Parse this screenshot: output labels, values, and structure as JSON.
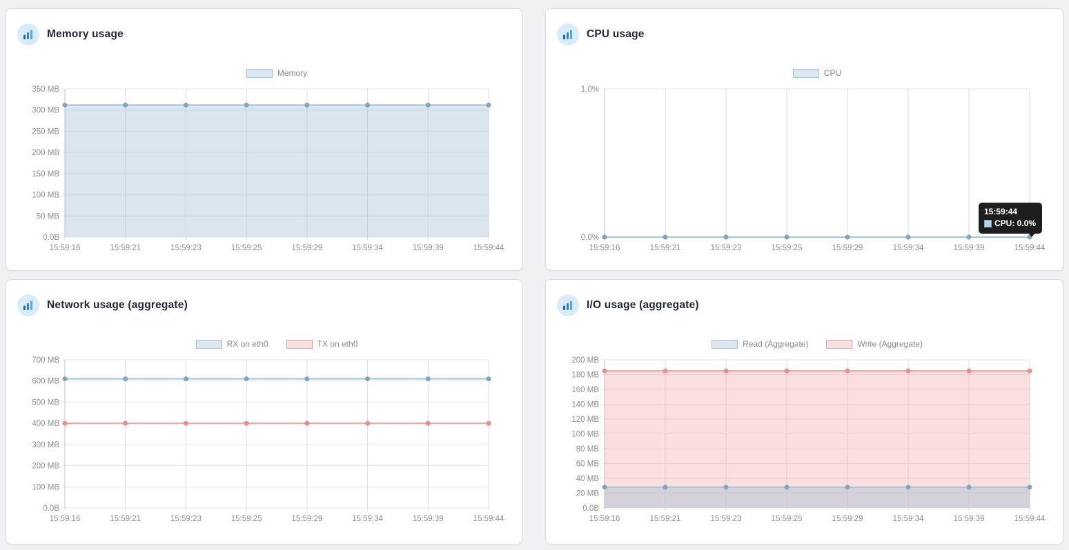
{
  "page": {
    "background": "#f0f1f3",
    "card_border": "#d8dbe2",
    "icon_circle_bg": "#d9ecfc",
    "icon_bar_colors": [
      "#1c66a8",
      "#2e84c8",
      "#5aa5dd"
    ]
  },
  "cards": [
    {
      "title": "Memory usage"
    },
    {
      "title": "CPU usage"
    },
    {
      "title": "Network usage (aggregate)"
    },
    {
      "title": "I/O usage (aggregate)"
    }
  ],
  "chart_data": [
    {
      "type": "area",
      "title": "Memory usage",
      "legend_position": "top",
      "grid": true,
      "categories": [
        "15:59:16",
        "15:59:21",
        "15:59:23",
        "15:59:25",
        "15:59:29",
        "15:59:34",
        "15:59:39",
        "15:59:44"
      ],
      "ylim": [
        0,
        350
      ],
      "yticks": {
        "values": [
          0,
          50,
          100,
          150,
          200,
          250,
          300,
          350
        ],
        "labels": [
          "0.0B",
          "50 MB",
          "100 MB",
          "150 MB",
          "200 MB",
          "250 MB",
          "300 MB",
          "350 MB"
        ]
      },
      "series": [
        {
          "name": "Memory",
          "values": [
            312,
            312,
            312,
            312,
            312,
            312,
            312,
            312
          ],
          "line": "#a6c2d5",
          "marker": "#7ea6c1",
          "fill": "rgba(166,194,213,0.42)",
          "swatch_fill": "#dce8f1"
        }
      ]
    },
    {
      "type": "line",
      "title": "CPU usage",
      "legend_position": "top",
      "grid": true,
      "categories": [
        "15:59:16",
        "15:59:21",
        "15:59:23",
        "15:59:25",
        "15:59:29",
        "15:59:34",
        "15:59:39",
        "15:59:44"
      ],
      "ylim": [
        0,
        1
      ],
      "yticks": {
        "values": [
          0,
          1
        ],
        "labels": [
          "0.0%",
          "1.0%"
        ]
      },
      "series": [
        {
          "name": "CPU",
          "values": [
            0,
            0,
            0,
            0,
            0,
            0,
            0,
            0
          ],
          "line": "#a6c2d5",
          "marker": "#7ea6c1",
          "fill": "none",
          "swatch_fill": "#dce8f1"
        }
      ],
      "tooltip": {
        "time": "15:59:44",
        "series": "CPU",
        "label": "CPU: 0.0%"
      }
    },
    {
      "type": "line",
      "title": "Network usage (aggregate)",
      "legend_position": "top",
      "grid": true,
      "categories": [
        "15:59:16",
        "15:59:21",
        "15:59:23",
        "15:59:25",
        "15:59:29",
        "15:59:34",
        "15:59:39",
        "15:59:44"
      ],
      "ylim": [
        0,
        700
      ],
      "yticks": {
        "values": [
          0,
          100,
          200,
          300,
          400,
          500,
          600,
          700
        ],
        "labels": [
          "0.0B",
          "100 MB",
          "200 MB",
          "300 MB",
          "400 MB",
          "500 MB",
          "600 MB",
          "700 MB"
        ]
      },
      "series": [
        {
          "name": "RX on eth0",
          "values": [
            610,
            610,
            610,
            610,
            610,
            610,
            610,
            610
          ],
          "line": "#a6c2d5",
          "marker": "#7ea6c1",
          "fill": "none",
          "swatch_fill": "#dce8f1"
        },
        {
          "name": "TX on eth0",
          "values": [
            400,
            400,
            400,
            400,
            400,
            400,
            400,
            400
          ],
          "line": "#f2a3a1",
          "marker": "#ec8d8b",
          "fill": "none",
          "swatch_fill": "#fbdfde"
        }
      ]
    },
    {
      "type": "area",
      "title": "I/O usage (aggregate)",
      "legend_position": "top",
      "grid": true,
      "categories": [
        "15:59:16",
        "15:59:21",
        "15:59:23",
        "15:59:25",
        "15:59:29",
        "15:59:34",
        "15:59:39",
        "15:59:44"
      ],
      "ylim": [
        0,
        200
      ],
      "yticks": {
        "values": [
          0,
          20,
          40,
          60,
          80,
          100,
          120,
          140,
          160,
          180,
          200
        ],
        "labels": [
          "0.0B",
          "20 MB",
          "40 MB",
          "60 MB",
          "80 MB",
          "100 MB",
          "120 MB",
          "140 MB",
          "160 MB",
          "180 MB",
          "200 MB"
        ]
      },
      "series": [
        {
          "name": "Read (Aggregate)",
          "values": [
            28,
            28,
            28,
            28,
            28,
            28,
            28,
            28
          ],
          "z": 2,
          "line": "#a6c2d5",
          "marker": "#7ea6c1",
          "fill": "rgba(166,194,213,0.45)",
          "swatch_fill": "#dce8f1"
        },
        {
          "name": "Write (Aggregate)",
          "values": [
            185,
            185,
            185,
            185,
            185,
            185,
            185,
            185
          ],
          "z": 1,
          "line": "#f2a3a1",
          "marker": "#ec8d8b",
          "fill": "rgba(242,163,161,0.35)",
          "swatch_fill": "#fbdfde"
        }
      ]
    }
  ]
}
